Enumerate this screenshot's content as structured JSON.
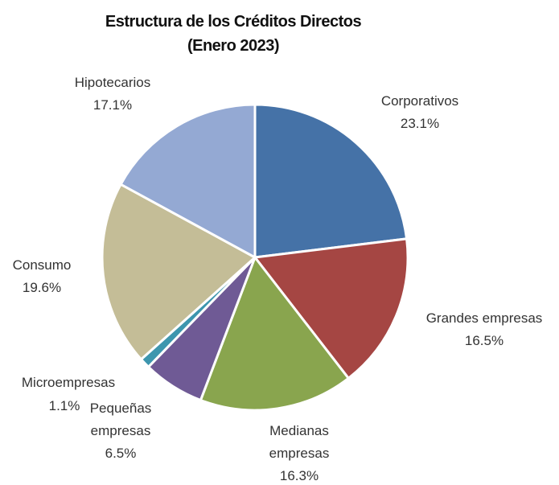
{
  "chart_data": {
    "type": "pie",
    "title": "Estructura de los Créditos Directos",
    "subtitle": "(Enero 2023)",
    "categories": [
      "Corporativos",
      "Grandes empresas",
      "Medianas empresas",
      "Pequeñas empresas",
      "Microempresas",
      "Consumo",
      "Hipotecarios"
    ],
    "values": [
      23.1,
      16.5,
      16.3,
      6.5,
      1.1,
      19.6,
      17.1
    ],
    "value_labels": [
      "23.1%",
      "16.5%",
      "16.3%",
      "6.5%",
      "1.1%",
      "19.6%",
      "17.1%"
    ],
    "colors": [
      "#4572a7",
      "#a54643",
      "#89a54e",
      "#6f5a95",
      "#3d96ae",
      "#c4bd97",
      "#94a9d3"
    ]
  }
}
